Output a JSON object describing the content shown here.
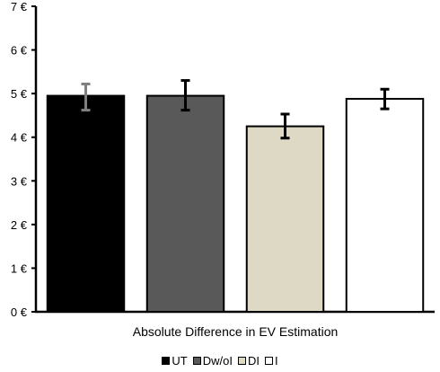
{
  "chart_data": {
    "type": "bar",
    "xlabel": "Absolute Difference in EV Estimation",
    "ylabel": "",
    "ylim": [
      0,
      7
    ],
    "ytick_values": [
      0,
      1,
      2,
      3,
      4,
      5,
      6,
      7
    ],
    "ytick_labels": [
      "0 €",
      "1 €",
      "2 €",
      "3 €",
      "4 €",
      "5 €",
      "6 €",
      "7 €"
    ],
    "series": [
      {
        "name": "UT",
        "value": 4.95,
        "error": [
          4.62,
          5.22
        ],
        "fill": "#000000",
        "error_color": "#808080"
      },
      {
        "name": "Dw/oI",
        "value": 4.95,
        "error": [
          4.62,
          5.3
        ],
        "fill": "#595959",
        "error_color": "#000000"
      },
      {
        "name": "DI",
        "value": 4.25,
        "error": [
          3.98,
          4.53
        ],
        "fill": "#ddd9c4",
        "error_color": "#000000"
      },
      {
        "name": "I",
        "value": 4.88,
        "error": [
          4.65,
          5.1
        ],
        "fill": "#ffffff",
        "error_color": "#000000"
      }
    ],
    "legend_position": "bottom",
    "grid": false
  }
}
